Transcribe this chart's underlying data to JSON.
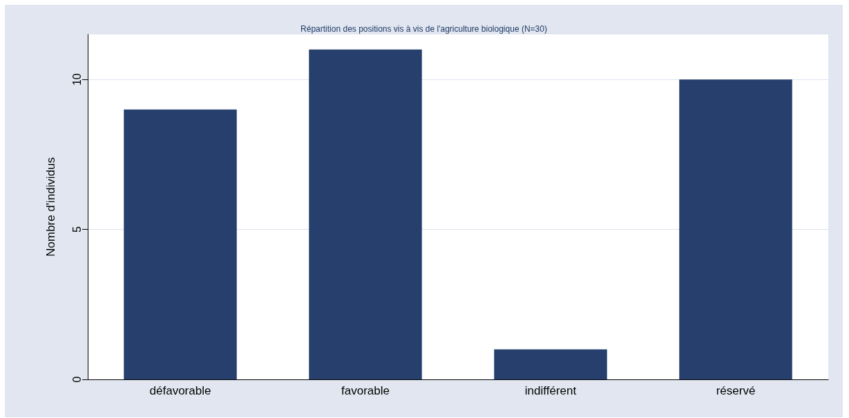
{
  "chart_data": {
    "type": "bar",
    "title": "Répartition des positions vis à vis de l'agriculture biologique (N=30)",
    "ylabel": "Nombre d'individus",
    "categories": [
      "défavorable",
      "favorable",
      "indifférent",
      "réservé"
    ],
    "values": [
      9,
      11,
      1,
      10
    ],
    "color": "#263f6c",
    "ylim": [
      0,
      11.5
    ],
    "yticks": [
      0,
      5,
      10
    ],
    "grid": "y"
  }
}
